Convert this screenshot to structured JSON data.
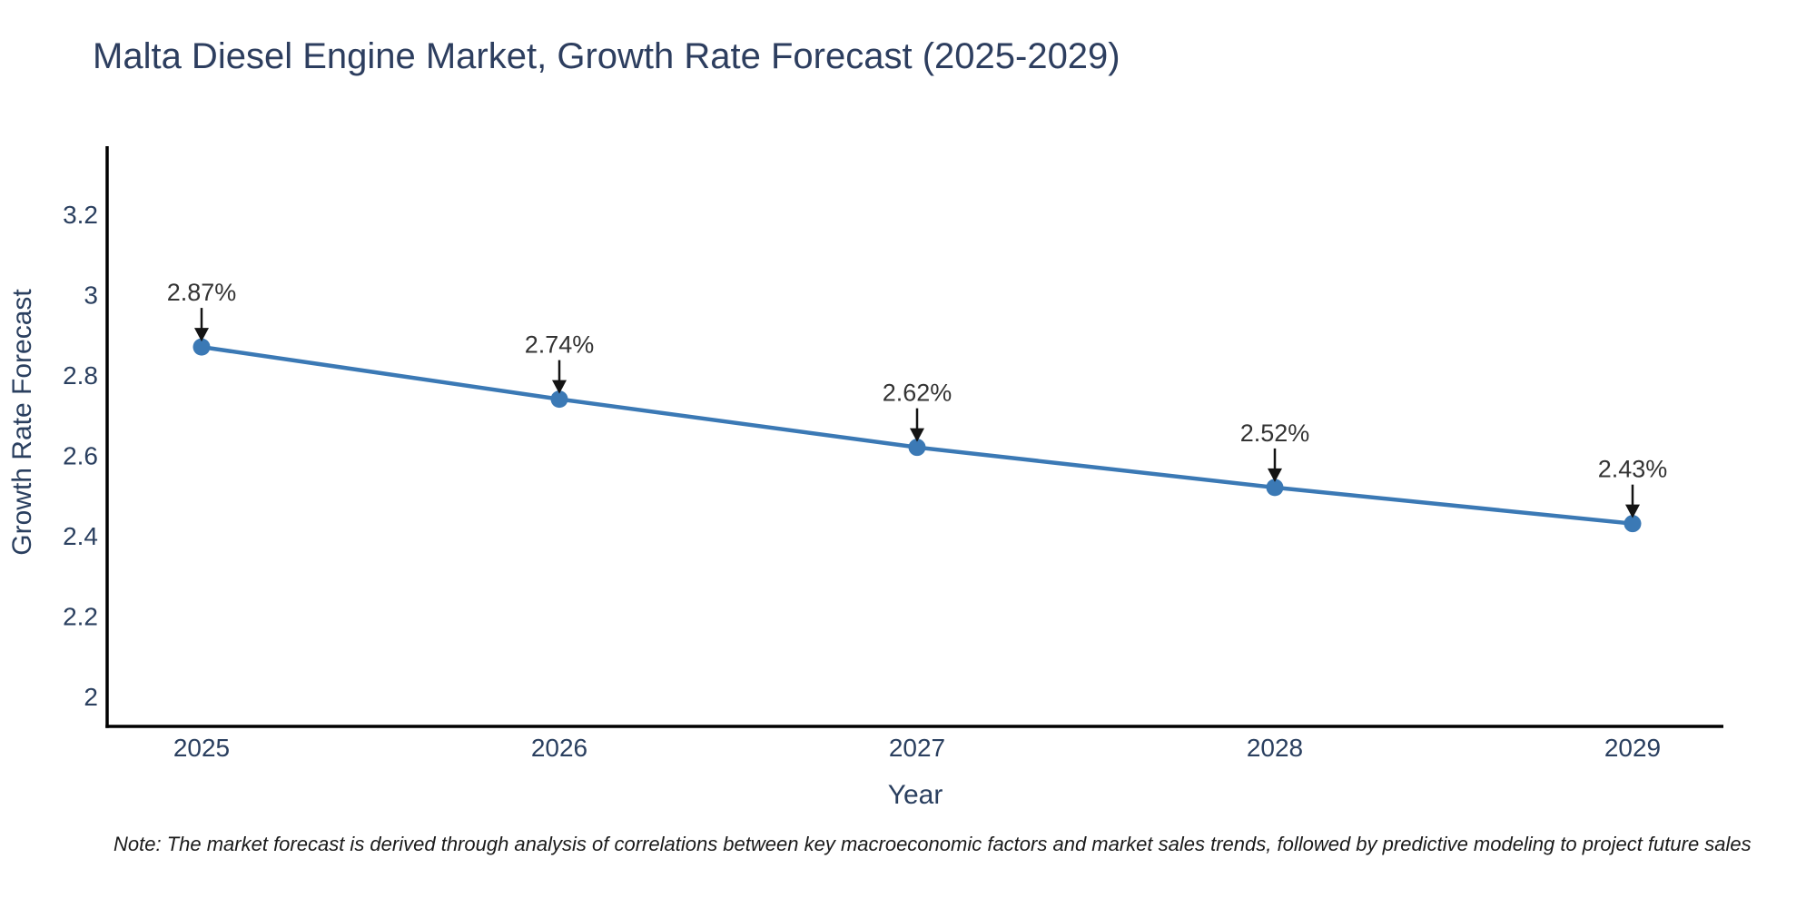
{
  "footer": {
    "note": "Note: The market forecast is derived through analysis of correlations between key macroeconomic factors and market sales trends, followed by predictive modeling to project future sales"
  },
  "chart_data": {
    "type": "line",
    "title": "Malta Diesel Engine Market, Growth Rate Forecast (2025-2029)",
    "xlabel": "Year",
    "ylabel": "Growth Rate Forecast",
    "x": [
      2025,
      2026,
      2027,
      2028,
      2029
    ],
    "values": [
      2.87,
      2.74,
      2.62,
      2.52,
      2.43
    ],
    "point_labels": [
      "2.87%",
      "2.74%",
      "2.62%",
      "2.52%",
      "2.43%"
    ],
    "yticks": [
      2,
      2.2,
      2.4,
      2.6,
      2.8,
      3,
      3.2
    ],
    "ylim": [
      1.925,
      3.37
    ],
    "grid": false,
    "legend": "none",
    "annotation_style": "down-arrow-to-point",
    "colors": {
      "line": "#3b79b5",
      "marker": "#3b79b5",
      "axis": "#000000",
      "axis_text": "#2a3f5f",
      "title_text": "#2d3e5f",
      "annotation_text": "#333333",
      "annotation_arrow": "#141414",
      "note_text": "#1a1a1a",
      "background": "#ffffff"
    }
  }
}
